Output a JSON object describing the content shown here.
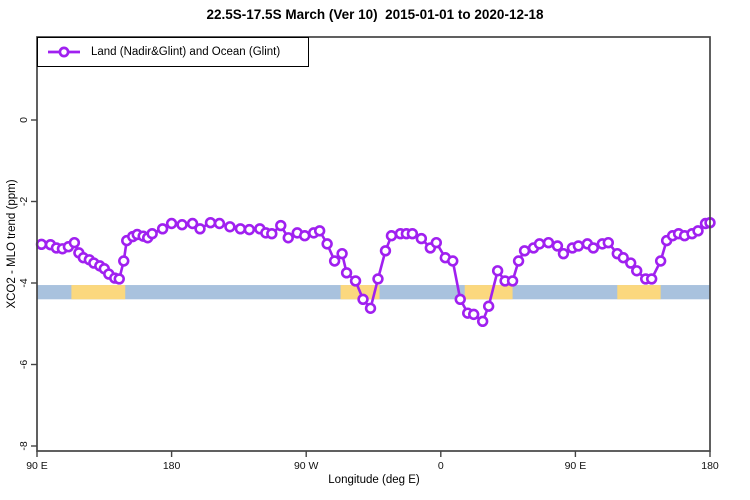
{
  "chart_data": {
    "type": "line",
    "title": "22.5S-17.5S March (Ver 10)  2015-01-01 to 2020-12-18",
    "xlabel": "Longitude (deg E)",
    "ylabel": "XCO2 - MLO trend (ppm)",
    "x_range": [
      90,
      540
    ],
    "y_range": [
      -8.12,
      2.04
    ],
    "grid": false,
    "legend_position": "top-left",
    "x_ticks": [
      {
        "value": 90,
        "label": "90 E"
      },
      {
        "value": 180,
        "label": "180"
      },
      {
        "value": 270,
        "label": "90 W"
      },
      {
        "value": 360,
        "label": "0"
      },
      {
        "value": 450,
        "label": "90 E"
      },
      {
        "value": 540,
        "label": "180"
      }
    ],
    "y_ticks": [
      {
        "value": 0,
        "label": "0"
      },
      {
        "value": -2,
        "label": "-2"
      },
      {
        "value": -4,
        "label": "-4"
      },
      {
        "value": -6,
        "label": "-6"
      },
      {
        "value": -8,
        "label": "-8"
      }
    ],
    "series": [
      {
        "name": "Land (Nadir&Glint) and Ocean (Glint)",
        "color": "#A020F0",
        "marker": "open-circle",
        "x": [
          93,
          99,
          103,
          107,
          111,
          115,
          118,
          121,
          125,
          128,
          132,
          135,
          138,
          142,
          145,
          148,
          150,
          154,
          157,
          161,
          164,
          167,
          174,
          180,
          187,
          194,
          199,
          206,
          212,
          219,
          226,
          232,
          239,
          243,
          247,
          253,
          258,
          264,
          269,
          275,
          279,
          284,
          289,
          294,
          297,
          303,
          308,
          313,
          318,
          323,
          327,
          333,
          337,
          341,
          347,
          353,
          357,
          363,
          368,
          373,
          378,
          382,
          388,
          392,
          398,
          403,
          408,
          412,
          416,
          422,
          426,
          432,
          438,
          442,
          448,
          452,
          458,
          462,
          468,
          472,
          478,
          482,
          487,
          491,
          497,
          501,
          507,
          511,
          515,
          519,
          523,
          528,
          532,
          537,
          540
        ],
        "y": [
          -3.05,
          -3.06,
          -3.14,
          -3.16,
          -3.11,
          -3.01,
          -3.26,
          -3.38,
          -3.43,
          -3.51,
          -3.58,
          -3.65,
          -3.78,
          -3.88,
          -3.9,
          -3.46,
          -2.96,
          -2.86,
          -2.81,
          -2.85,
          -2.89,
          -2.79,
          -2.67,
          -2.54,
          -2.57,
          -2.54,
          -2.67,
          -2.52,
          -2.54,
          -2.62,
          -2.67,
          -2.69,
          -2.67,
          -2.77,
          -2.79,
          -2.59,
          -2.89,
          -2.77,
          -2.84,
          -2.77,
          -2.72,
          -3.04,
          -3.46,
          -3.28,
          -3.75,
          -3.95,
          -4.4,
          -4.62,
          -3.9,
          -3.21,
          -2.84,
          -2.79,
          -2.79,
          -2.79,
          -2.91,
          -3.14,
          -3.01,
          -3.38,
          -3.46,
          -4.4,
          -4.74,
          -4.77,
          -4.94,
          -4.57,
          -3.7,
          -3.95,
          -3.95,
          -3.46,
          -3.21,
          -3.14,
          -3.04,
          -3.01,
          -3.09,
          -3.28,
          -3.14,
          -3.09,
          -3.04,
          -3.14,
          -3.04,
          -3.01,
          -3.28,
          -3.38,
          -3.51,
          -3.7,
          -3.9,
          -3.9,
          -3.46,
          -2.96,
          -2.84,
          -2.79,
          -2.84,
          -2.79,
          -2.72,
          -2.54,
          -2.52
        ]
      }
    ],
    "background_bands": {
      "y_top": -4.05,
      "y_bottom": -4.4,
      "ocean_color": "#A9C2DE",
      "land_color": "#FBD87E",
      "ocean_x_range": [
        90,
        540
      ],
      "land_segments": [
        {
          "x_range": [
            113,
            149
          ]
        },
        {
          "x_range": [
            293,
            319
          ]
        },
        {
          "x_range": [
            376,
            408
          ]
        },
        {
          "x_range": [
            478,
            507
          ]
        }
      ]
    }
  },
  "colors": {
    "series": "#A020F0",
    "ocean_band": "#A9C2DE",
    "land_band": "#FBD87E",
    "axis": "#444444",
    "text": "#000000"
  }
}
